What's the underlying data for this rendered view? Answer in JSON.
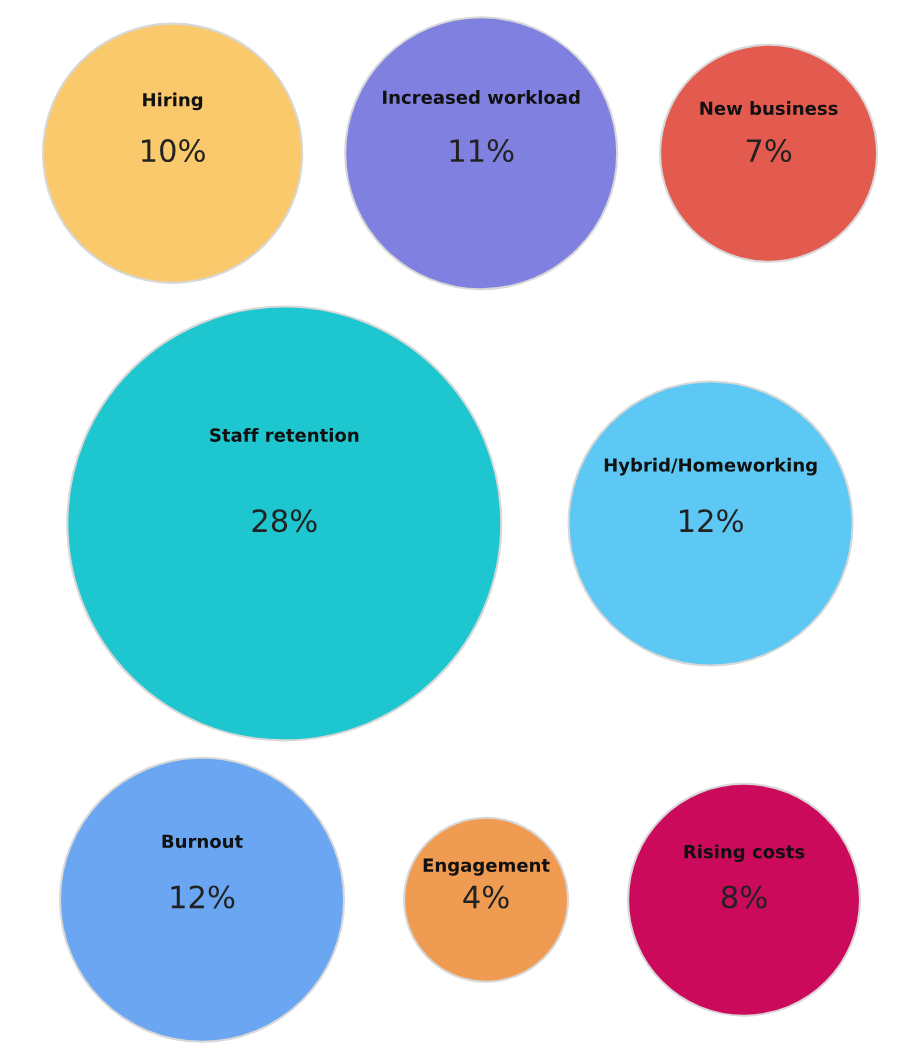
{
  "chart_data": {
    "type": "other",
    "categories": [
      "Hiring",
      "Increased workload",
      "New business",
      "Staff retention",
      "Hybrid/Homeworking",
      "Burnout",
      "Engagement",
      "Rising costs"
    ],
    "values": [
      10,
      11,
      7,
      28,
      12,
      12,
      4,
      8
    ],
    "value_labels": [
      "10%",
      "11%",
      "7%",
      "28%",
      "12%",
      "12%",
      "4%",
      "8%"
    ],
    "colors": [
      "#f9c96b",
      "#8080e0",
      "#e35a4f",
      "#1ec6d0",
      "#5ec8f5",
      "#6aa6f2",
      "#ef9b52",
      "#cc0a5c"
    ]
  }
}
